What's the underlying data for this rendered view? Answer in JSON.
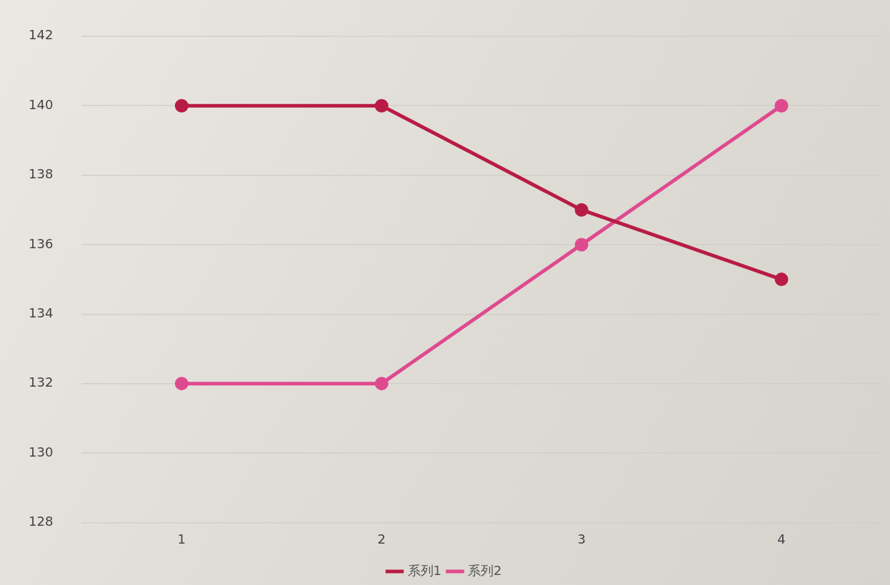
{
  "chart_data": {
    "type": "line",
    "categories": [
      "1",
      "2",
      "3",
      "4"
    ],
    "series": [
      {
        "name": "系列1",
        "color": "#b81c45",
        "values": [
          140,
          140,
          137,
          135
        ]
      },
      {
        "name": "系列2",
        "color": "#df4a8f",
        "values": [
          132,
          132,
          136,
          140
        ]
      }
    ],
    "ylim": [
      128,
      142
    ],
    "yticks": [
      128,
      130,
      132,
      134,
      136,
      138,
      140,
      142
    ],
    "grid": "y",
    "legend": "bottom",
    "marker": "circle",
    "line_style": "solid"
  }
}
